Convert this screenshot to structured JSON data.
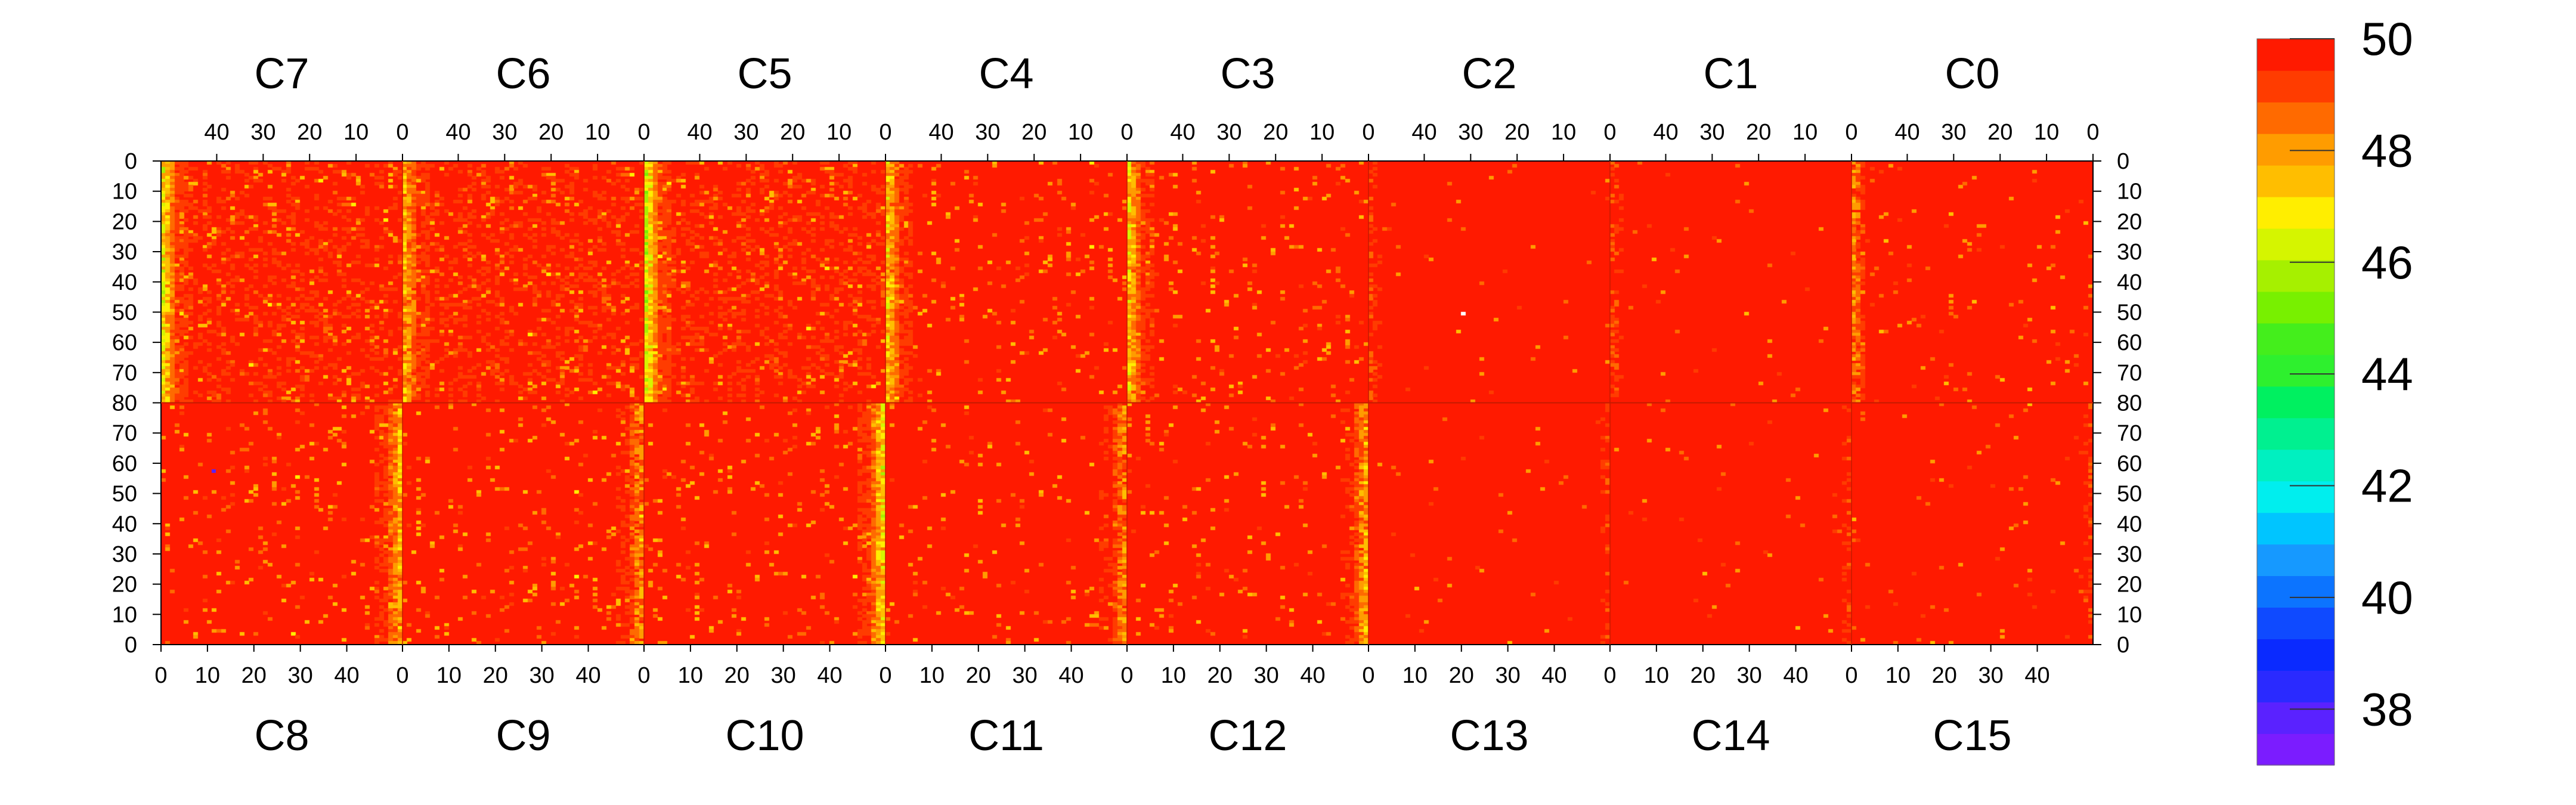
{
  "chart_data": {
    "type": "heatmap",
    "title": "",
    "xlabel": "",
    "ylabel": "",
    "top_chips": [
      "C7",
      "C6",
      "C5",
      "C4",
      "C3",
      "C2",
      "C1",
      "C0"
    ],
    "bottom_chips": [
      "C8",
      "C9",
      "C10",
      "C11",
      "C12",
      "C13",
      "C14",
      "C15"
    ],
    "top_column_ticks": [
      "40",
      "30",
      "20",
      "10",
      "0"
    ],
    "bottom_column_ticks": [
      "0",
      "10",
      "20",
      "30",
      "40"
    ],
    "top_row_ticks": [
      "0",
      "10",
      "20",
      "30",
      "40",
      "50",
      "60",
      "70",
      "80"
    ],
    "bottom_row_ticks": [
      "70",
      "60",
      "50",
      "40",
      "30",
      "20",
      "10",
      "0"
    ],
    "columns_per_chip": 52,
    "rows_per_chip": 80,
    "colorbar": {
      "min": 37,
      "max": 50,
      "levels": 20,
      "tick_values": [
        50,
        48,
        46,
        44,
        42,
        40,
        38
      ],
      "tick_labels": [
        "50",
        "48",
        "46",
        "44",
        "42",
        "40",
        "38"
      ],
      "colors": [
        "#7b1cff",
        "#5a22ff",
        "#2a2aff",
        "#0a2aff",
        "#0f4aff",
        "#0c74ff",
        "#1699ff",
        "#00c5ff",
        "#00eeee",
        "#00f0c0",
        "#00f090",
        "#00f060",
        "#2ef02e",
        "#44ee1c",
        "#78f000",
        "#a6f000",
        "#d5f500",
        "#ffee00",
        "#ffbe00",
        "#ff9c00",
        "#ff6a00",
        "#ff3c00",
        "#ff1a00"
      ]
    },
    "series": [
      {
        "chip": "C7",
        "typical_value": 49.5,
        "low_edge_column": 0,
        "low_edge_mean": 47.0
      },
      {
        "chip": "C6",
        "typical_value": 49.5,
        "low_edge_column": 0,
        "low_edge_mean": 47.8
      },
      {
        "chip": "C5",
        "typical_value": 49.5,
        "low_edge_column": 0,
        "low_edge_mean": 46.5
      },
      {
        "chip": "C4",
        "typical_value": 49.6,
        "low_edge_column": 0,
        "low_edge_mean": 47.5
      },
      {
        "chip": "C3",
        "typical_value": 49.6,
        "low_edge_column": 0,
        "low_edge_mean": 47.5
      },
      {
        "chip": "C2",
        "typical_value": 49.9,
        "low_edge_column": 0,
        "low_edge_mean": 49.6
      },
      {
        "chip": "C1",
        "typical_value": 49.9,
        "low_edge_column": 0,
        "low_edge_mean": 49.5
      },
      {
        "chip": "C0",
        "typical_value": 49.8,
        "low_edge_column": 0,
        "low_edge_mean": 48.5
      },
      {
        "chip": "C8",
        "typical_value": 49.6,
        "low_edge_column": 51,
        "low_edge_mean": 47.8
      },
      {
        "chip": "C9",
        "typical_value": 49.6,
        "low_edge_column": 51,
        "low_edge_mean": 48.3
      },
      {
        "chip": "C10",
        "typical_value": 49.6,
        "low_edge_column": 51,
        "low_edge_mean": 47.2
      },
      {
        "chip": "C11",
        "typical_value": 49.7,
        "low_edge_column": 51,
        "low_edge_mean": 48.3
      },
      {
        "chip": "C12",
        "typical_value": 49.7,
        "low_edge_column": 51,
        "low_edge_mean": 48.0
      },
      {
        "chip": "C13",
        "typical_value": 49.9,
        "low_edge_column": 51,
        "low_edge_mean": 49.8
      },
      {
        "chip": "C14",
        "typical_value": 49.9,
        "low_edge_column": 51,
        "low_edge_mean": 49.8
      },
      {
        "chip": "C15",
        "typical_value": 49.85,
        "low_edge_column": 51,
        "low_edge_mean": 49.7
      }
    ]
  }
}
